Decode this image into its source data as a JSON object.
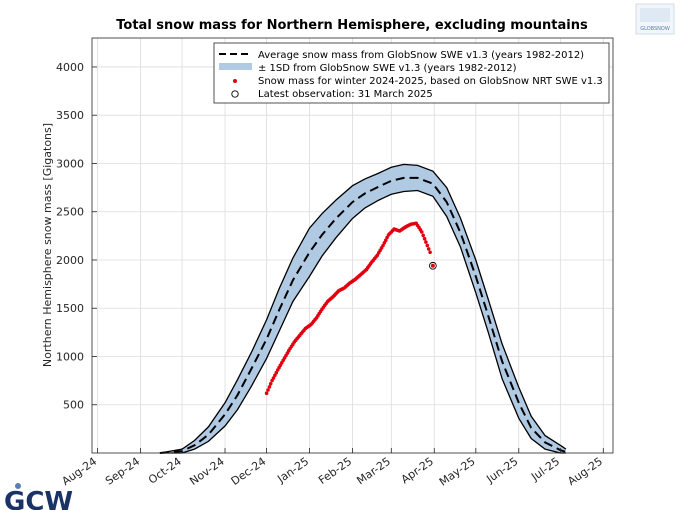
{
  "chart_data": {
    "type": "line",
    "title": "Total snow mass for Northern Hemisphere, excluding mountains",
    "ylabel": "Northern Hemisphere snow mass [Gigatons]",
    "xlabel": "",
    "ylim": [
      0,
      4300
    ],
    "yticks": [
      500,
      1000,
      1500,
      2000,
      2500,
      3000,
      3500,
      4000
    ],
    "xlim": [
      "2024-07-28",
      "2025-08-08"
    ],
    "xticks": [
      {
        "date": "2024-08-01",
        "label": "Aug-24"
      },
      {
        "date": "2024-09-01",
        "label": "Sep-24"
      },
      {
        "date": "2024-10-01",
        "label": "Oct-24"
      },
      {
        "date": "2024-11-01",
        "label": "Nov-24"
      },
      {
        "date": "2024-12-01",
        "label": "Dec-24"
      },
      {
        "date": "2025-01-01",
        "label": "Jan-25"
      },
      {
        "date": "2025-02-01",
        "label": "Feb-25"
      },
      {
        "date": "2025-03-01",
        "label": "Mar-25"
      },
      {
        "date": "2025-04-01",
        "label": "Apr-25"
      },
      {
        "date": "2025-05-01",
        "label": "May-25"
      },
      {
        "date": "2025-06-01",
        "label": "Jun-25"
      },
      {
        "date": "2025-07-01",
        "label": "Jul-25"
      },
      {
        "date": "2025-08-01",
        "label": "Aug-25"
      }
    ],
    "grid": true,
    "legend_position": "top-right",
    "series": [
      {
        "name": "Average snow mass from GlobSnow SWE v1.3 (years 1982-2012)",
        "style": "dashed-black",
        "x": [
          "2024-09-15",
          "2024-10-01",
          "2024-10-10",
          "2024-10-20",
          "2024-11-01",
          "2024-11-10",
          "2024-11-20",
          "2024-12-01",
          "2024-12-10",
          "2024-12-20",
          "2025-01-01",
          "2025-01-10",
          "2025-01-20",
          "2025-02-01",
          "2025-02-10",
          "2025-02-20",
          "2025-03-01",
          "2025-03-10",
          "2025-03-20",
          "2025-03-31",
          "2025-04-10",
          "2025-04-20",
          "2025-05-01",
          "2025-05-10",
          "2025-05-20",
          "2025-06-01",
          "2025-06-10",
          "2025-06-20",
          "2025-07-01",
          "2025-07-05"
        ],
        "y": [
          0,
          20,
          80,
          190,
          400,
          600,
          870,
          1180,
          1480,
          1790,
          2080,
          2260,
          2430,
          2600,
          2690,
          2760,
          2820,
          2850,
          2850,
          2790,
          2600,
          2280,
          1830,
          1420,
          950,
          520,
          260,
          110,
          30,
          10
        ]
      },
      {
        "name": "± 1SD from GlobSnow SWE v1.3 (years 1982-2012)",
        "style": "band-lightblue",
        "x": [
          "2024-09-15",
          "2024-10-01",
          "2024-10-10",
          "2024-10-20",
          "2024-11-01",
          "2024-11-10",
          "2024-11-20",
          "2024-12-01",
          "2024-12-10",
          "2024-12-20",
          "2025-01-01",
          "2025-01-10",
          "2025-01-20",
          "2025-02-01",
          "2025-02-10",
          "2025-02-20",
          "2025-03-01",
          "2025-03-10",
          "2025-03-20",
          "2025-03-31",
          "2025-04-10",
          "2025-04-20",
          "2025-05-01",
          "2025-05-10",
          "2025-05-20",
          "2025-06-01",
          "2025-06-10",
          "2025-06-20",
          "2025-07-01",
          "2025-07-05"
        ],
        "upper": [
          0,
          40,
          130,
          270,
          520,
          760,
          1040,
          1380,
          1700,
          2020,
          2330,
          2480,
          2620,
          2770,
          2840,
          2900,
          2960,
          2990,
          2980,
          2920,
          2750,
          2430,
          2000,
          1590,
          1130,
          680,
          380,
          180,
          80,
          40
        ],
        "lower": [
          0,
          0,
          40,
          120,
          280,
          450,
          690,
          980,
          1260,
          1570,
          1830,
          2040,
          2230,
          2430,
          2540,
          2620,
          2680,
          2710,
          2720,
          2660,
          2450,
          2130,
          1660,
          1250,
          770,
          360,
          150,
          40,
          0,
          0
        ]
      },
      {
        "name": "Snow mass for winter 2024-2025, based on GlobSnow NRT SWE v1.3",
        "style": "red-dots",
        "x": [
          "2024-12-01",
          "2024-12-05",
          "2024-12-09",
          "2024-12-13",
          "2024-12-17",
          "2024-12-21",
          "2024-12-25",
          "2024-12-29",
          "2025-01-02",
          "2025-01-06",
          "2025-01-10",
          "2025-01-14",
          "2025-01-18",
          "2025-01-22",
          "2025-01-26",
          "2025-01-30",
          "2025-02-03",
          "2025-02-07",
          "2025-02-11",
          "2025-02-15",
          "2025-02-19",
          "2025-02-23",
          "2025-02-27",
          "2025-03-03",
          "2025-03-07",
          "2025-03-11",
          "2025-03-15",
          "2025-03-19",
          "2025-03-23",
          "2025-03-27",
          "2025-03-29"
        ],
        "y": [
          620,
          750,
          860,
          960,
          1060,
          1150,
          1220,
          1290,
          1330,
          1400,
          1490,
          1570,
          1620,
          1680,
          1710,
          1760,
          1800,
          1850,
          1900,
          1980,
          2050,
          2150,
          2260,
          2320,
          2300,
          2340,
          2370,
          2380,
          2290,
          2150,
          2080
        ]
      },
      {
        "name": "Latest observation: 31 March 2025",
        "style": "open-circle",
        "x": [
          "2025-03-31"
        ],
        "y": [
          1940
        ]
      }
    ]
  },
  "logos": {
    "top_right": "GLOBSNOW",
    "bottom_left": "GCW"
  },
  "colors": {
    "band_fill": "#b0cae4",
    "band_edge": "#000000",
    "dots": "#e3000f",
    "grid": "#dcdcdc"
  }
}
